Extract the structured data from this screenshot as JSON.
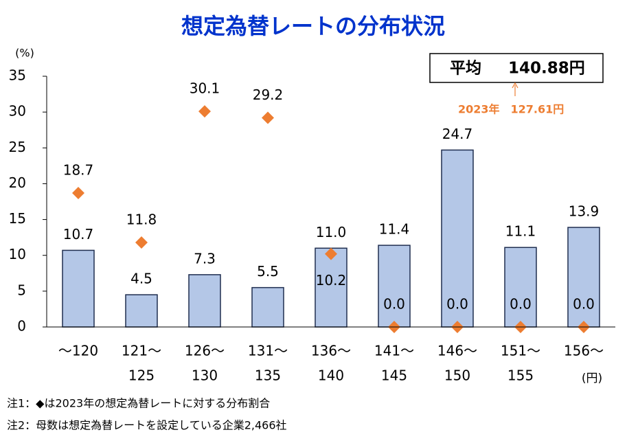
{
  "chart_data": {
    "type": "bar",
    "title": "想定為替レートの分布状況",
    "y_unit": "(%)",
    "x_unit": "(円)",
    "categories": [
      [
        "～120"
      ],
      [
        "121～",
        "125"
      ],
      [
        "126～",
        "130"
      ],
      [
        "131～",
        "135"
      ],
      [
        "136～",
        "140"
      ],
      [
        "141～",
        "145"
      ],
      [
        "146～",
        "150"
      ],
      [
        "151～",
        "155"
      ],
      [
        "156～"
      ]
    ],
    "series": [
      {
        "color": "#b4c7e7",
        "values": [
          10.7,
          4.5,
          7.3,
          5.5,
          11.0,
          11.4,
          24.7,
          11.1,
          13.9
        ],
        "value_labels": [
          "10.7",
          "4.5",
          "7.3",
          "5.5",
          "11.0",
          "11.4",
          "24.7",
          "11.1",
          "13.9"
        ]
      },
      {
        "color": "#ed7d31",
        "marker": "diamond",
        "values": [
          18.7,
          11.8,
          30.1,
          29.2,
          10.2,
          0,
          0,
          0,
          0
        ],
        "value_labels": [
          "18.7",
          "11.8",
          "30.1",
          "29.2",
          "10.2",
          "0.0",
          "0.0",
          "0.0",
          "0.0"
        ]
      }
    ],
    "ylim": [
      0,
      35
    ],
    "yticks": [
      0,
      5,
      10,
      15,
      20,
      25,
      30,
      35
    ],
    "average": {
      "label": "平均",
      "value": "140.88円"
    },
    "annotation": "2023年　127.61円",
    "notes": [
      "注1：◆は2023年の想定為替レートに対する分布割合",
      "注2：母数は想定為替レートを設定している企業2,466社"
    ]
  }
}
